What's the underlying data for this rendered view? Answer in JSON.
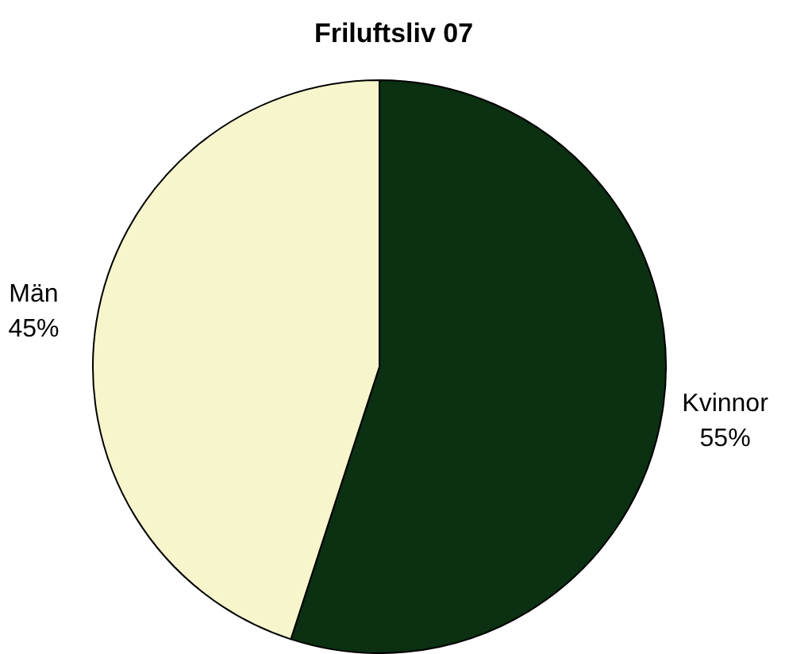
{
  "chart_data": {
    "type": "pie",
    "title": "Friluftsliv 07",
    "categories": [
      "Kvinnor",
      "Män"
    ],
    "values": [
      55,
      45
    ],
    "value_labels": [
      "55%",
      "45%"
    ],
    "colors": [
      "#0b3012",
      "#f7f5cc"
    ]
  }
}
